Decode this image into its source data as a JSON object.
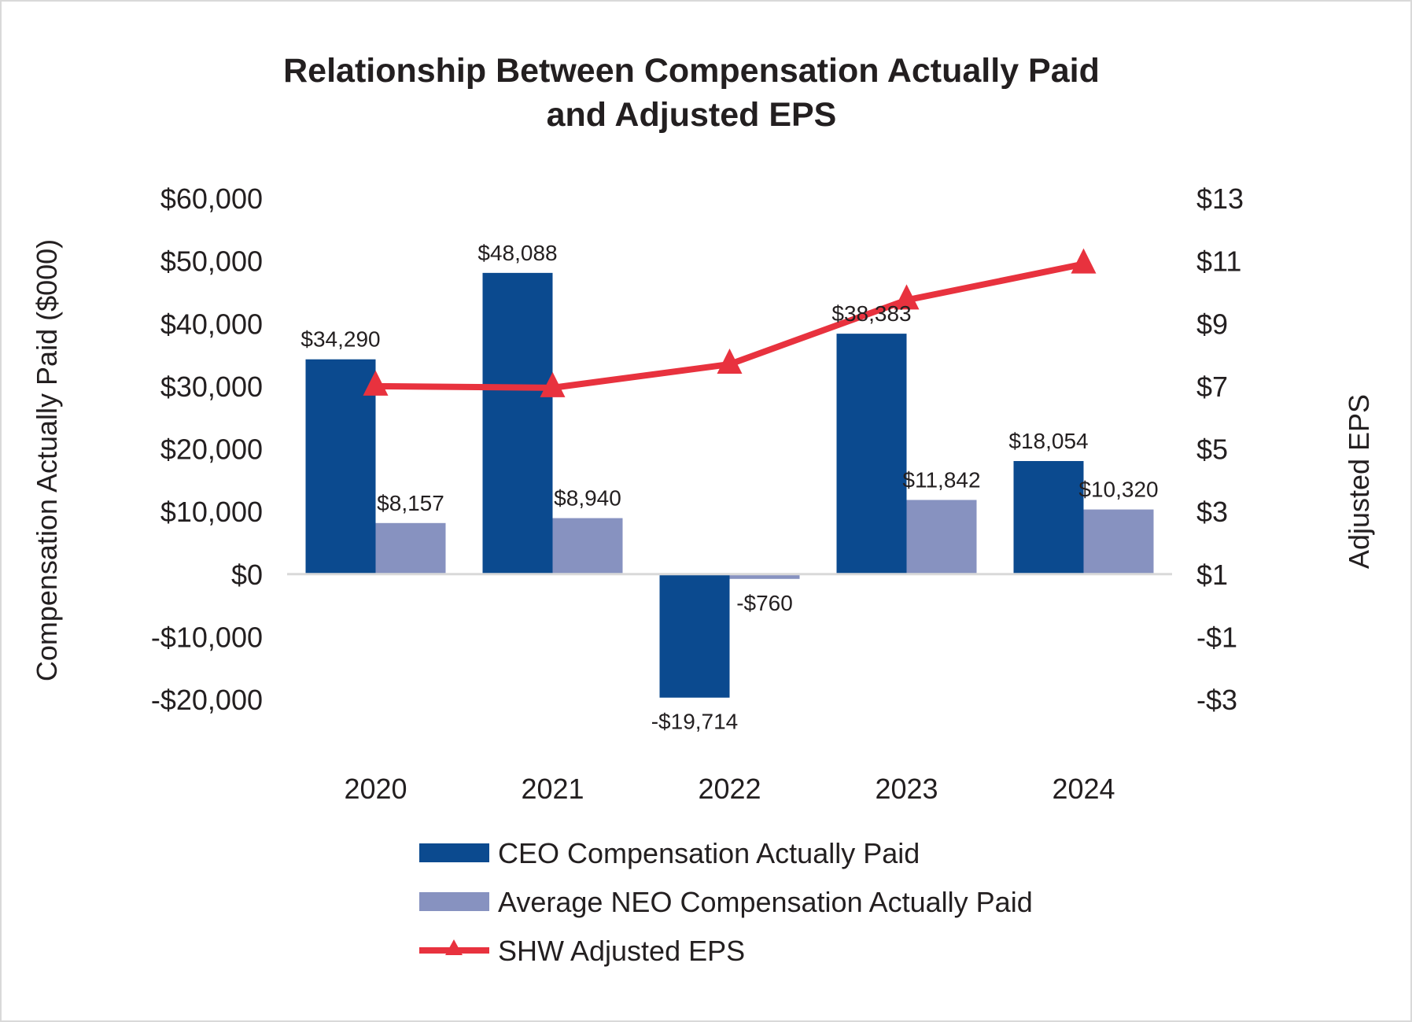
{
  "chart_data": {
    "type": "bar",
    "title_lines": [
      "Relationship Between Compensation Actually Paid",
      "and Adjusted EPS"
    ],
    "categories": [
      "2020",
      "2021",
      "2022",
      "2023",
      "2024"
    ],
    "series": [
      {
        "name": "CEO Compensation Actually Paid",
        "type": "bar",
        "axis": "left",
        "color": "#0b4a8f",
        "values": [
          34290,
          48088,
          -19714,
          38383,
          18054
        ],
        "labels": [
          "$34,290",
          "$48,088",
          "-$19,714",
          "$38,383",
          "$18,054"
        ]
      },
      {
        "name": "Average NEO Compensation Actually Paid",
        "type": "bar",
        "axis": "left",
        "color": "#8792c0",
        "values": [
          8157,
          8940,
          -760,
          11842,
          10320
        ],
        "labels": [
          "$8,157",
          "$8,940",
          "-$760",
          "$11,842",
          "$10,320"
        ]
      },
      {
        "name": "SHW Adjusted EPS",
        "type": "line",
        "marker": "triangle",
        "axis": "right",
        "color": "#e8323e",
        "values": [
          7.0,
          6.95,
          7.7,
          9.75,
          10.9
        ]
      }
    ],
    "y_left": {
      "label": "Compensation Actually Paid ($000)",
      "ylim": [
        -20000,
        60000
      ],
      "ticks": [
        60000,
        50000,
        40000,
        30000,
        20000,
        10000,
        0,
        -10000,
        -20000
      ],
      "tick_labels": [
        "$60,000",
        "$50,000",
        "$40,000",
        "$30,000",
        "$20,000",
        "$10,000",
        "$0",
        "-$10,000",
        "-$20,000"
      ]
    },
    "y_right": {
      "label": "Adjusted EPS",
      "ylim": [
        -3,
        13
      ],
      "ticks": [
        13,
        11,
        9,
        7,
        5,
        3,
        1,
        -1,
        -3
      ],
      "tick_labels": [
        "$13",
        "$11",
        "$9",
        "$7",
        "$5",
        "$3",
        "$1",
        "-$1",
        "-$3"
      ]
    },
    "grid": false,
    "legend_position": "bottom"
  }
}
